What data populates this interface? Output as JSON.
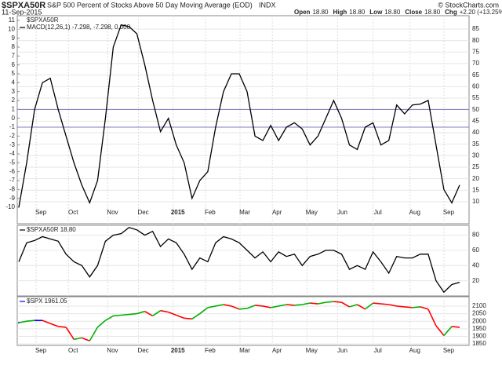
{
  "header": {
    "symbol": "$SPXA50R",
    "description": "S&P 500 Percent of Stocks Above 50 Day Moving Average (EOD)",
    "exchange": "INDX",
    "copyright": "© StockCharts.com",
    "date": "11-Sep-2015",
    "quote": [
      {
        "label": "Open",
        "value": "18.80"
      },
      {
        "label": "High",
        "value": "18.80"
      },
      {
        "label": "Low",
        "value": "18.80"
      },
      {
        "label": "Close",
        "value": "18.80"
      },
      {
        "label": "Chg",
        "value": "+2.20 (+13.25%)"
      }
    ]
  },
  "chart_data": [
    {
      "type": "line",
      "label": "$SPXA50R",
      "xlim": [
        0,
        56
      ],
      "xticks": [
        {
          "value": 2.8,
          "label": "Sep"
        },
        {
          "value": 6.9,
          "label": "Oct"
        },
        {
          "value": 11.9,
          "label": "Nov"
        },
        {
          "value": 15.8,
          "label": "Dec"
        },
        {
          "value": 20.2,
          "label": "2015"
        },
        {
          "value": 24.3,
          "label": "Feb"
        },
        {
          "value": 28.7,
          "label": "Mar"
        },
        {
          "value": 32.8,
          "label": "Apr"
        },
        {
          "value": 37.2,
          "label": "May"
        },
        {
          "value": 41.1,
          "label": "Jun"
        },
        {
          "value": 45.6,
          "label": "Jul"
        },
        {
          "value": 50.3,
          "label": "Aug"
        },
        {
          "value": 54.6,
          "label": "Sep"
        }
      ],
      "ylim": [
        -11.85,
        11.53
      ],
      "yticks": [
        -10,
        -9,
        -8,
        -7,
        -6,
        -5,
        -4,
        -3,
        -2,
        -1,
        0,
        1,
        2,
        3,
        4,
        5,
        6,
        7,
        8,
        9,
        10,
        11
      ],
      "y2lim": [
        0.45,
        90.8
      ],
      "y2ticks": [
        10,
        15,
        20,
        25,
        30,
        35,
        40,
        45,
        50,
        55,
        60,
        65,
        70,
        75,
        80,
        85
      ],
      "hlines": [
        1,
        -1
      ],
      "hline_color": "#7f7fbf",
      "grid": true,
      "series": [
        {
          "name": "MACD(12,26,1) -7.298, -7.298, 0.000",
          "color": "#000000",
          "values": [
            -10,
            -5,
            1,
            4,
            4.5,
            1,
            -2,
            -5,
            -7.5,
            -9.5,
            -7,
            0,
            8,
            10.5,
            10.3,
            9.5,
            6,
            2,
            -1.5,
            0,
            -3,
            -5,
            -9,
            -7,
            -6,
            -1,
            3,
            5,
            5,
            3,
            -2,
            -2.5,
            -0.8,
            -2.5,
            -1,
            -0.5,
            -1.2,
            -3,
            -2,
            0,
            2,
            0,
            -3,
            -3.5,
            -1,
            -0.5,
            -3,
            -2.5,
            1.5,
            0.5,
            1.5,
            1.6,
            2,
            -3,
            -8,
            -9.5,
            -7.5
          ]
        }
      ]
    },
    {
      "type": "line",
      "xlim": [
        0,
        56
      ],
      "y2lim": [
        0,
        93
      ],
      "y2ticks": [
        20,
        40,
        60,
        80
      ],
      "grid": true,
      "series": [
        {
          "name": "$SPXA50R 18.80",
          "color": "#000000",
          "axis": "y2",
          "values": [
            45,
            70,
            73,
            78,
            75,
            72,
            55,
            45,
            40,
            25,
            40,
            72,
            80,
            82,
            90,
            87,
            80,
            85,
            65,
            75,
            70,
            55,
            35,
            50,
            45,
            70,
            78,
            75,
            70,
            60,
            50,
            58,
            45,
            58,
            52,
            55,
            40,
            52,
            55,
            60,
            60,
            55,
            35,
            40,
            35,
            58,
            45,
            30,
            52,
            50,
            50,
            55,
            55,
            20,
            5,
            15,
            18
          ]
        }
      ]
    },
    {
      "type": "price",
      "xlim": [
        0,
        56
      ],
      "xticks": [
        {
          "value": 2.8,
          "label": "Sep"
        },
        {
          "value": 6.9,
          "label": "Oct"
        },
        {
          "value": 11.9,
          "label": "Nov"
        },
        {
          "value": 15.8,
          "label": "Dec"
        },
        {
          "value": 20.2,
          "label": "2015"
        },
        {
          "value": 24.3,
          "label": "Feb"
        },
        {
          "value": 28.7,
          "label": "Mar"
        },
        {
          "value": 32.8,
          "label": "Apr"
        },
        {
          "value": 37.2,
          "label": "May"
        },
        {
          "value": 41.1,
          "label": "Jun"
        },
        {
          "value": 45.6,
          "label": "Jul"
        },
        {
          "value": 50.3,
          "label": "Aug"
        },
        {
          "value": 54.6,
          "label": "Sep"
        }
      ],
      "y2lim": [
        1840,
        2162
      ],
      "y2ticks": [
        1850,
        1900,
        1950,
        2000,
        2050,
        2100
      ],
      "grid": true,
      "series": [
        {
          "name": "$SPX 1961.05",
          "up_color": "#00b000",
          "down_color": "#ff0000",
          "color": "#0000ff",
          "axis": "y2",
          "values": [
            1990,
            2000,
            2005,
            2005,
            1985,
            1965,
            1960,
            1880,
            1890,
            1870,
            1960,
            2005,
            2035,
            2040,
            2045,
            2050,
            2065,
            2035,
            2070,
            2060,
            2040,
            2020,
            2015,
            2050,
            2090,
            2100,
            2110,
            2100,
            2080,
            2085,
            2105,
            2100,
            2090,
            2100,
            2110,
            2105,
            2110,
            2120,
            2115,
            2125,
            2130,
            2125,
            2095,
            2110,
            2080,
            2120,
            2115,
            2110,
            2100,
            2095,
            2090,
            2095,
            2080,
            1970,
            1905,
            1965,
            1960
          ]
        }
      ]
    }
  ]
}
